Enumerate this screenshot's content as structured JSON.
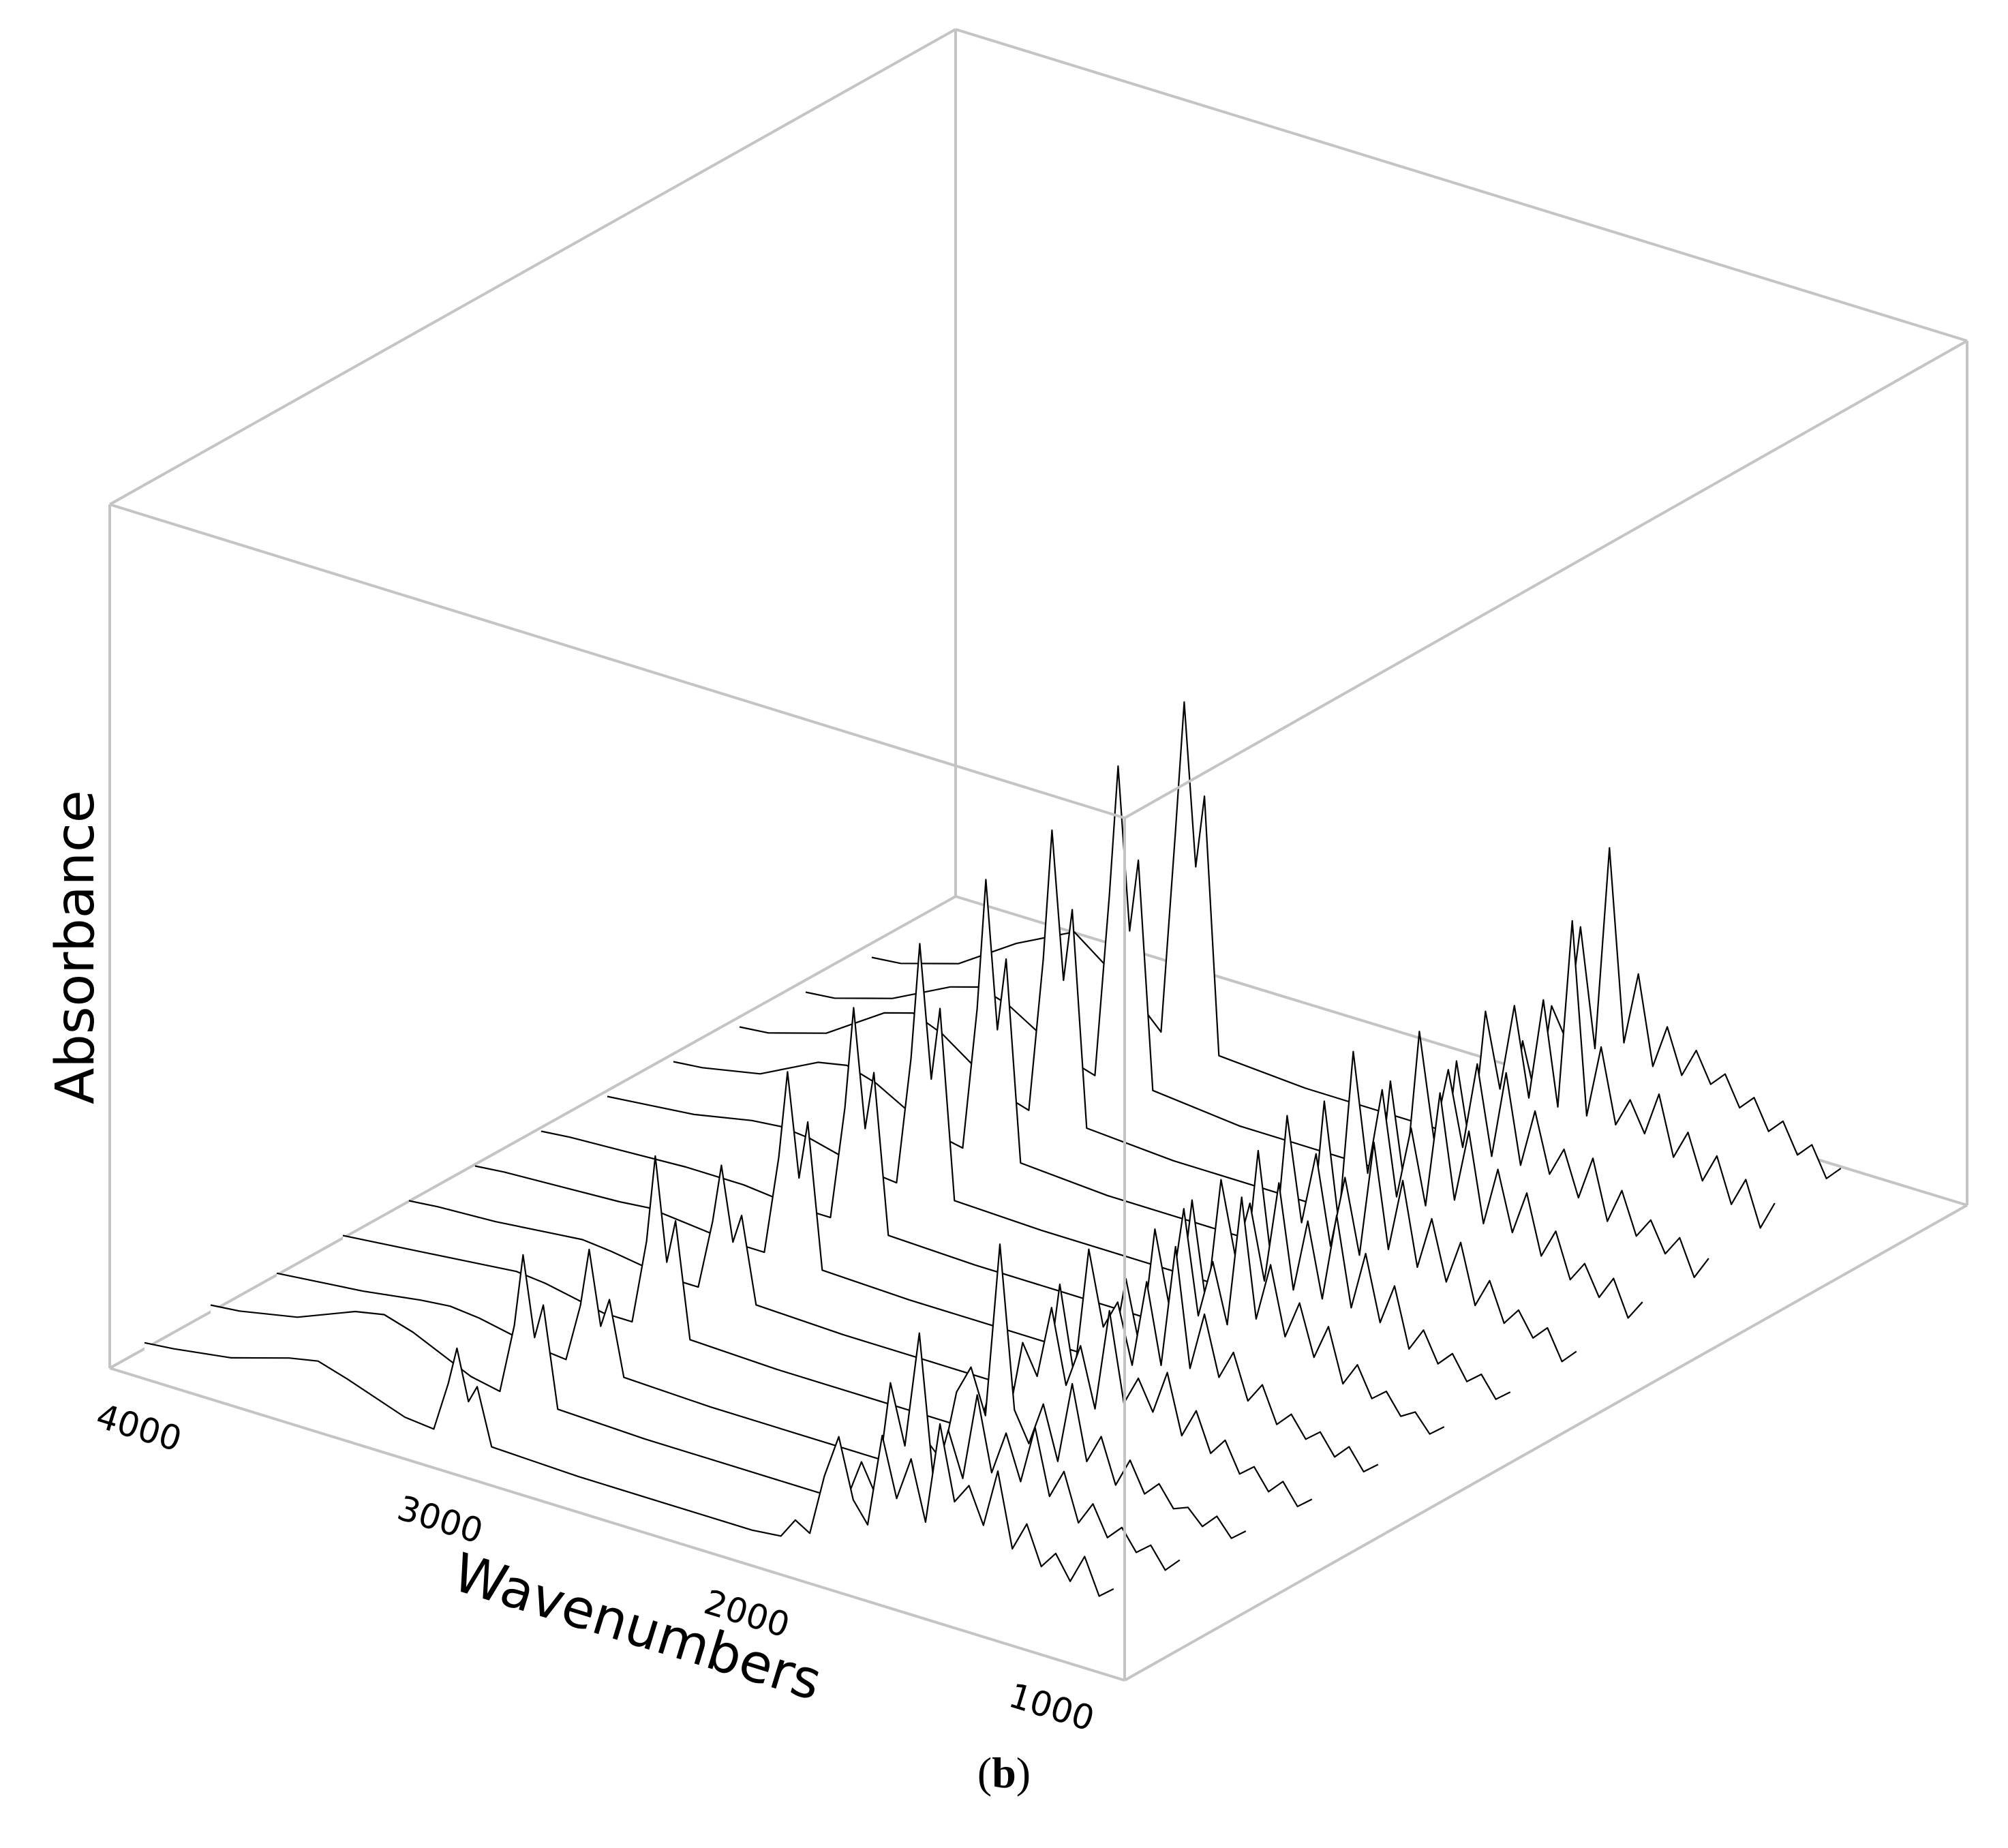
{
  "chart_data": {
    "type": "line",
    "view": "3d-waterfall",
    "xlabel": "Wavenumbers",
    "ylabel": "Absorbance",
    "xlim": [
      4000,
      600
    ],
    "xticks": [
      4000,
      3000,
      2000,
      1000
    ],
    "xtick_labels": [
      "4000",
      "3000",
      "2000",
      "1000"
    ],
    "grid": false,
    "series": [
      {
        "x": [
          4000,
          3900,
          3700,
          3500,
          3400,
          3300,
          3100,
          3000,
          2950,
          2920,
          2880,
          2850,
          2800,
          2500,
          2200,
          2000,
          1900,
          1800,
          1750,
          1700,
          1650,
          1600,
          1550,
          1500,
          1450,
          1400,
          1350,
          1300,
          1250,
          1200,
          1150,
          1100,
          1050,
          1000,
          950,
          900,
          850,
          800,
          750,
          700,
          650
        ],
        "y": [
          0.04,
          0.05,
          0.08,
          0.14,
          0.16,
          0.13,
          0.06,
          0.05,
          0.22,
          0.35,
          0.18,
          0.24,
          0.05,
          0.04,
          0.04,
          0.04,
          0.04,
          0.05,
          0.12,
          0.09,
          0.3,
          0.45,
          0.25,
          0.18,
          0.5,
          0.3,
          0.45,
          0.25,
          0.6,
          0.35,
          0.42,
          0.3,
          0.5,
          0.25,
          0.35,
          0.22,
          0.28,
          0.2,
          0.3,
          0.18,
          0.22
        ]
      },
      {
        "x": [
          4000,
          3900,
          3700,
          3500,
          3400,
          3300,
          3100,
          3000,
          2950,
          2920,
          2880,
          2850,
          2800,
          2500,
          2200,
          2000,
          1900,
          1800,
          1750,
          1700,
          1650,
          1600,
          1550,
          1500,
          1450,
          1400,
          1350,
          1300,
          1250,
          1200,
          1150,
          1100,
          1050,
          1000,
          950,
          900,
          850,
          800,
          750,
          700,
          650
        ],
        "y": [
          0.05,
          0.06,
          0.1,
          0.18,
          0.2,
          0.17,
          0.08,
          0.06,
          0.3,
          0.55,
          0.28,
          0.4,
          0.06,
          0.05,
          0.05,
          0.05,
          0.05,
          0.06,
          0.2,
          0.1,
          0.5,
          0.3,
          0.7,
          0.2,
          0.4,
          0.25,
          0.55,
          0.3,
          0.45,
          0.3,
          0.5,
          0.28,
          0.38,
          0.22,
          0.3,
          0.2,
          0.25,
          0.18,
          0.22,
          0.15,
          0.2
        ]
      },
      {
        "x": [
          4000,
          3900,
          3700,
          3500,
          3400,
          3300,
          3100,
          3000,
          2950,
          2920,
          2880,
          2850,
          2800,
          2500,
          2200,
          2000,
          1900,
          1800,
          1750,
          1700,
          1650,
          1600,
          1550,
          1500,
          1450,
          1400,
          1350,
          1300,
          1250,
          1200,
          1150,
          1100,
          1050,
          1000,
          950,
          900,
          850,
          800,
          750,
          700,
          650
        ],
        "y": [
          0.04,
          0.05,
          0.07,
          0.1,
          0.11,
          0.1,
          0.06,
          0.05,
          0.25,
          0.45,
          0.2,
          0.3,
          0.05,
          0.04,
          0.04,
          0.04,
          0.04,
          0.05,
          0.15,
          0.1,
          0.35,
          0.45,
          0.3,
          0.9,
          0.35,
          0.25,
          0.4,
          0.22,
          0.5,
          0.25,
          0.35,
          0.2,
          0.3,
          0.2,
          0.25,
          0.18,
          0.2,
          0.15,
          0.2,
          0.14,
          0.18
        ]
      },
      {
        "x": [
          4000,
          3900,
          3700,
          3500,
          3400,
          3300,
          3100,
          3000,
          2950,
          2920,
          2880,
          2850,
          2800,
          2500,
          2200,
          2000,
          1900,
          1800,
          1750,
          1700,
          1650,
          1600,
          1550,
          1500,
          1450,
          1400,
          1350,
          1300,
          1250,
          1200,
          1150,
          1100,
          1050,
          1000,
          950,
          900,
          850,
          800,
          750,
          700,
          650
        ],
        "y": [
          0.05,
          0.06,
          0.08,
          0.1,
          0.11,
          0.1,
          0.06,
          0.06,
          0.35,
          0.65,
          0.3,
          0.45,
          0.06,
          0.05,
          0.05,
          0.05,
          0.05,
          0.06,
          0.25,
          0.12,
          0.4,
          0.3,
          0.55,
          0.3,
          0.45,
          0.25,
          0.6,
          0.3,
          0.4,
          0.3,
          0.45,
          0.25,
          0.35,
          0.22,
          0.28,
          0.18,
          0.22,
          0.15,
          0.2,
          0.13,
          0.17
        ]
      },
      {
        "x": [
          4000,
          3900,
          3700,
          3500,
          3400,
          3300,
          3100,
          3000,
          2950,
          2920,
          2880,
          2850,
          2800,
          2500,
          2200,
          2000,
          1900,
          1800,
          1750,
          1700,
          1650,
          1600,
          1550,
          1500,
          1450,
          1400,
          1350,
          1300,
          1250,
          1200,
          1150,
          1100,
          1050,
          1000,
          950,
          900,
          850,
          800,
          750,
          700,
          650
        ],
        "y": [
          0.05,
          0.06,
          0.07,
          0.09,
          0.1,
          0.09,
          0.06,
          0.06,
          0.3,
          0.5,
          0.25,
          0.35,
          0.06,
          0.05,
          0.05,
          0.05,
          0.05,
          0.06,
          0.45,
          0.15,
          0.6,
          0.35,
          0.45,
          0.25,
          0.55,
          0.28,
          0.7,
          0.3,
          0.5,
          0.3,
          0.4,
          0.25,
          0.32,
          0.2,
          0.25,
          0.18,
          0.22,
          0.15,
          0.2,
          0.13,
          0.17
        ]
      },
      {
        "x": [
          4000,
          3900,
          3700,
          3500,
          3400,
          3300,
          3100,
          3000,
          2950,
          2920,
          2880,
          2850,
          2800,
          2500,
          2200,
          2000,
          1900,
          1800,
          1750,
          1700,
          1650,
          1600,
          1550,
          1500,
          1450,
          1400,
          1350,
          1300,
          1250,
          1200,
          1150,
          1100,
          1050,
          1000,
          950,
          900,
          850,
          800,
          750,
          700,
          650
        ],
        "y": [
          0.05,
          0.06,
          0.07,
          0.08,
          0.09,
          0.08,
          0.06,
          0.06,
          0.4,
          0.7,
          0.35,
          0.55,
          0.06,
          0.05,
          0.05,
          0.05,
          0.05,
          0.06,
          0.35,
          0.12,
          0.55,
          0.3,
          0.65,
          0.3,
          0.5,
          0.3,
          0.75,
          0.35,
          0.55,
          0.32,
          0.45,
          0.28,
          0.4,
          0.22,
          0.3,
          0.2,
          0.24,
          0.17,
          0.2,
          0.14,
          0.18
        ]
      },
      {
        "x": [
          4000,
          3900,
          3700,
          3500,
          3400,
          3300,
          3100,
          3000,
          2950,
          2920,
          2880,
          2850,
          2800,
          2500,
          2200,
          2000,
          1900,
          1800,
          1750,
          1700,
          1650,
          1600,
          1550,
          1500,
          1450,
          1400,
          1350,
          1300,
          1250,
          1200,
          1150,
          1100,
          1050,
          1000,
          950,
          900,
          850,
          800,
          750,
          700,
          650
        ],
        "y": [
          0.05,
          0.06,
          0.07,
          0.08,
          0.08,
          0.08,
          0.06,
          0.06,
          0.45,
          0.8,
          0.4,
          0.6,
          0.06,
          0.05,
          0.05,
          0.05,
          0.05,
          0.06,
          0.5,
          0.15,
          0.6,
          0.35,
          0.55,
          0.3,
          0.65,
          0.3,
          0.55,
          0.3,
          0.6,
          0.3,
          0.5,
          0.28,
          0.42,
          0.22,
          0.3,
          0.2,
          0.25,
          0.17,
          0.21,
          0.14,
          0.18
        ]
      },
      {
        "x": [
          4000,
          3900,
          3700,
          3500,
          3400,
          3300,
          3100,
          3000,
          2950,
          2920,
          2880,
          2850,
          2800,
          2500,
          2200,
          2000,
          1900,
          1800,
          1750,
          1700,
          1650,
          1600,
          1550,
          1500,
          1450,
          1400,
          1350,
          1300,
          1250,
          1200,
          1150,
          1100,
          1050,
          1000,
          950,
          900,
          850,
          800,
          750,
          700,
          650
        ],
        "y": [
          0.05,
          0.06,
          0.08,
          0.12,
          0.13,
          0.12,
          0.07,
          0.06,
          0.5,
          0.9,
          0.45,
          0.7,
          0.06,
          0.05,
          0.05,
          0.05,
          0.05,
          0.06,
          0.55,
          0.15,
          0.7,
          0.35,
          0.6,
          0.3,
          0.55,
          0.3,
          0.7,
          0.35,
          0.6,
          0.32,
          0.5,
          0.3,
          0.45,
          0.25,
          0.35,
          0.22,
          0.28,
          0.2,
          0.25,
          0.15,
          0.2
        ]
      },
      {
        "x": [
          4000,
          3900,
          3700,
          3500,
          3400,
          3300,
          3100,
          3000,
          2950,
          2920,
          2880,
          2850,
          2800,
          2500,
          2200,
          2000,
          1900,
          1800,
          1750,
          1700,
          1650,
          1600,
          1550,
          1500,
          1450,
          1400,
          1350,
          1300,
          1250,
          1200,
          1150,
          1100,
          1050,
          1000,
          950,
          900,
          850,
          800,
          750,
          700,
          650
        ],
        "y": [
          0.05,
          0.06,
          0.1,
          0.2,
          0.22,
          0.19,
          0.08,
          0.06,
          0.55,
          1.0,
          0.5,
          0.75,
          0.07,
          0.05,
          0.05,
          0.05,
          0.05,
          0.06,
          0.6,
          0.2,
          0.8,
          0.4,
          0.7,
          0.35,
          0.6,
          0.35,
          0.75,
          0.4,
          0.65,
          0.35,
          0.55,
          0.35,
          0.5,
          0.3,
          0.4,
          0.25,
          0.32,
          0.22,
          0.3,
          0.18,
          0.25
        ]
      },
      {
        "x": [
          4000,
          3900,
          3700,
          3500,
          3400,
          3300,
          3100,
          3000,
          2950,
          2920,
          2880,
          2850,
          2800,
          2500,
          2200,
          2000,
          1900,
          1800,
          1750,
          1700,
          1650,
          1600,
          1550,
          1500,
          1450,
          1400,
          1350,
          1300,
          1250,
          1200,
          1150,
          1100,
          1050,
          1000,
          950,
          900,
          850,
          800,
          750,
          700,
          650
        ],
        "y": [
          0.05,
          0.06,
          0.12,
          0.25,
          0.28,
          0.24,
          0.1,
          0.07,
          0.6,
          1.05,
          0.55,
          0.8,
          0.07,
          0.05,
          0.05,
          0.05,
          0.05,
          0.06,
          0.55,
          0.2,
          0.75,
          0.4,
          0.65,
          0.4,
          0.7,
          0.4,
          0.7,
          0.4,
          0.6,
          0.4,
          0.5,
          0.35,
          0.5,
          0.3,
          0.42,
          0.28,
          0.35,
          0.25,
          0.32,
          0.2,
          0.28
        ]
      },
      {
        "x": [
          4000,
          3900,
          3700,
          3500,
          3400,
          3300,
          3100,
          3000,
          2950,
          2920,
          2880,
          2850,
          2800,
          2500,
          2200,
          2000,
          1900,
          1800,
          1750,
          1700,
          1650,
          1600,
          1550,
          1500,
          1450,
          1400,
          1350,
          1300,
          1250,
          1200,
          1150,
          1100,
          1050,
          1000,
          950,
          900,
          850,
          800,
          750,
          700,
          650
        ],
        "y": [
          0.05,
          0.06,
          0.12,
          0.22,
          0.25,
          0.22,
          0.1,
          0.07,
          0.7,
          1.15,
          0.6,
          0.85,
          0.08,
          0.05,
          0.05,
          0.05,
          0.05,
          0.06,
          0.5,
          0.2,
          0.7,
          0.45,
          0.75,
          0.45,
          0.8,
          0.45,
          1.1,
          0.45,
          0.7,
          0.45,
          0.55,
          0.45,
          0.6,
          0.4,
          0.5,
          0.35,
          0.45,
          0.3,
          0.4,
          0.25,
          0.35
        ]
      },
      {
        "x": [
          4000,
          3900,
          3700,
          3500,
          3400,
          3300,
          3100,
          3000,
          2950,
          2920,
          2880,
          2850,
          2800,
          2500,
          2200,
          2000,
          1900,
          1800,
          1750,
          1700,
          1650,
          1600,
          1550,
          1500,
          1450,
          1400,
          1350,
          1300,
          1250,
          1200,
          1150,
          1100,
          1050,
          1000,
          950,
          900,
          850,
          800,
          750,
          700,
          650
        ],
        "y": [
          0.05,
          0.06,
          0.12,
          0.25,
          0.3,
          0.35,
          0.2,
          0.1,
          0.8,
          1.25,
          0.7,
          0.95,
          0.08,
          0.06,
          0.06,
          0.06,
          0.06,
          0.06,
          0.45,
          0.25,
          0.6,
          0.5,
          0.9,
          0.5,
          1.2,
          0.55,
          0.8,
          0.5,
          0.65,
          0.5,
          0.6,
          0.5,
          0.55,
          0.45,
          0.5,
          0.4,
          0.45,
          0.35,
          0.4,
          0.3,
          0.35
        ]
      }
    ]
  },
  "caption": {
    "open": "(",
    "letter": "b",
    "close": ")"
  }
}
